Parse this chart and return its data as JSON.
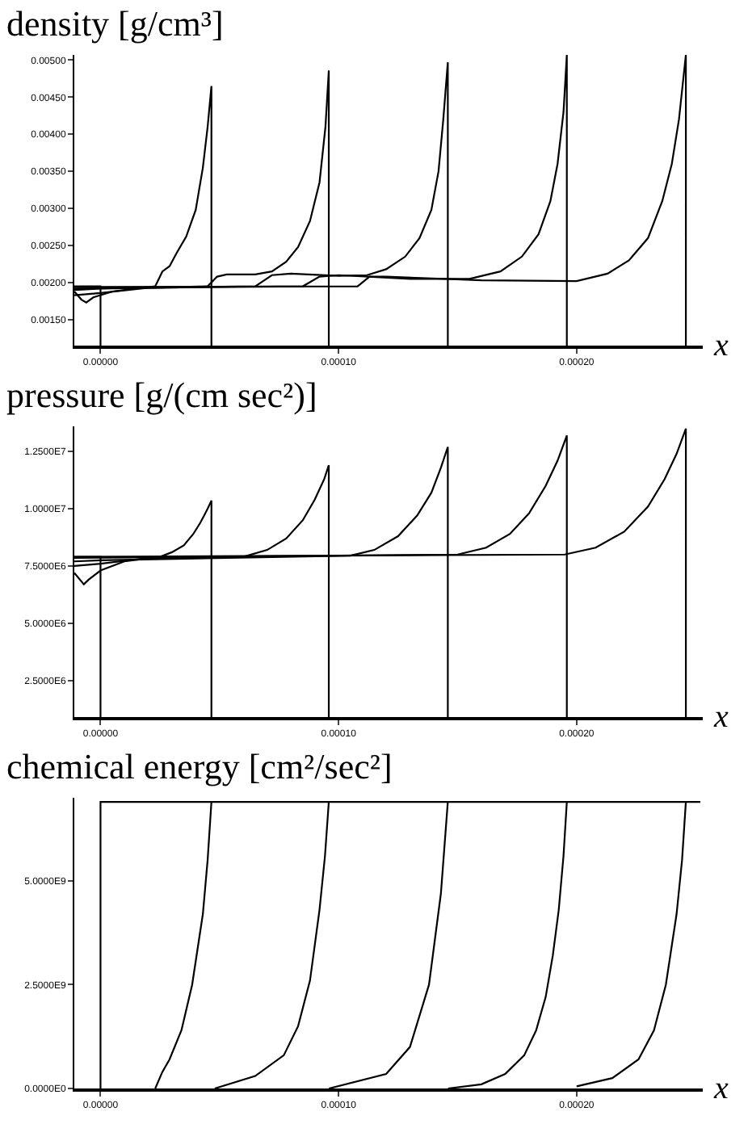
{
  "chart_data": [
    {
      "type": "line",
      "title": "density [g/cm³]",
      "xlabel": "x",
      "line_style": "solid",
      "xlim": [
        -1.1e-05,
        0.000253
      ],
      "xticks": [
        {
          "value": 0,
          "label": "0.00000"
        },
        {
          "value": 0.0001,
          "label": "0.00010"
        },
        {
          "value": 0.0002,
          "label": "0.00020"
        }
      ],
      "ylim": [
        0.00115,
        0.00507
      ],
      "yticks": [
        {
          "value": 0.0015,
          "label": "0.00150"
        },
        {
          "value": 0.002,
          "label": "0.00200"
        },
        {
          "value": 0.0025,
          "label": "0.00250"
        },
        {
          "value": 0.003,
          "label": "0.00300"
        },
        {
          "value": 0.0035,
          "label": "0.00350"
        },
        {
          "value": 0.004,
          "label": "0.00400"
        },
        {
          "value": 0.0045,
          "label": "0.00450"
        },
        {
          "value": 0.005,
          "label": "0.00500"
        }
      ],
      "series": [
        {
          "color": "#000000",
          "x": [
            -1.1e-05,
            0,
            0
          ],
          "values": [
            0.00195,
            0.00195,
            0.00115
          ]
        },
        {
          "color": "#000000",
          "x": [
            -1.1e-05,
            -8e-06,
            -6e-06,
            -3e-06,
            5e-06,
            1.5e-05,
            2.3e-05,
            2.6e-05,
            2.9e-05,
            3.2e-05,
            3.6e-05,
            4e-05,
            4.3e-05,
            4.5e-05,
            4.66e-05,
            4.66e-05
          ],
          "values": [
            0.00188,
            0.00177,
            0.00173,
            0.0018,
            0.00188,
            0.00192,
            0.00195,
            0.00215,
            0.00222,
            0.0024,
            0.00262,
            0.00298,
            0.00355,
            0.0041,
            0.00465,
            0.00115
          ]
        },
        {
          "color": "#000000",
          "x": [
            -1.1e-05,
            0,
            2e-05,
            4.5e-05,
            4.9e-05,
            5.3e-05,
            6.5e-05,
            7.2e-05,
            7.8e-05,
            8.3e-05,
            8.8e-05,
            9.2e-05,
            9.45e-05,
            9.59e-05,
            9.59e-05
          ],
          "values": [
            0.00183,
            0.00186,
            0.00193,
            0.00195,
            0.00208,
            0.00211,
            0.00211,
            0.00215,
            0.00228,
            0.00248,
            0.00283,
            0.00335,
            0.0041,
            0.00486,
            0.00115
          ]
        },
        {
          "color": "#000000",
          "x": [
            -1.1e-05,
            0,
            6.5e-05,
            7.2e-05,
            8e-05,
            0.0001,
            0.000112,
            0.00012,
            0.000128,
            0.000134,
            0.000139,
            0.000142,
            0.000144,
            0.0001459,
            0.0001459
          ],
          "values": [
            0.0019,
            0.00192,
            0.00195,
            0.0021,
            0.00212,
            0.00209,
            0.0021,
            0.00218,
            0.00235,
            0.0026,
            0.00298,
            0.0035,
            0.0042,
            0.00497,
            0.00115
          ]
        },
        {
          "color": "#000000",
          "x": [
            -1.1e-05,
            8.5e-05,
            9.2e-05,
            0.0001,
            0.00013,
            0.000155,
            0.000168,
            0.000177,
            0.000184,
            0.000189,
            0.000192,
            0.0001945,
            0.0001959,
            0.0001959
          ],
          "values": [
            0.00192,
            0.00195,
            0.00208,
            0.0021,
            0.00205,
            0.00205,
            0.00215,
            0.00235,
            0.00265,
            0.0031,
            0.0036,
            0.0043,
            0.00507,
            0.00115
          ]
        },
        {
          "color": "#000000",
          "x": [
            -1.1e-05,
            0.000108,
            0.000113,
            0.00012,
            0.00016,
            0.0002,
            0.000213,
            0.000222,
            0.00023,
            0.000236,
            0.00024,
            0.000243,
            0.0002459,
            0.0002459
          ],
          "values": [
            0.00194,
            0.00195,
            0.00208,
            0.00208,
            0.00203,
            0.00202,
            0.00212,
            0.0023,
            0.0026,
            0.0031,
            0.0036,
            0.0042,
            0.00507,
            0.00115
          ]
        }
      ]
    },
    {
      "type": "line",
      "title": "pressure [g/(cm sec²)]",
      "xlabel": "x",
      "line_style": "solid",
      "xlim": [
        -1.1e-05,
        0.000253
      ],
      "xticks": [
        {
          "value": 0,
          "label": "0.00000"
        },
        {
          "value": 0.0001,
          "label": "0.00010"
        },
        {
          "value": 0.0002,
          "label": "0.00020"
        }
      ],
      "ylim": [
        900000,
        13600000
      ],
      "yticks": [
        {
          "value": 2500000,
          "label": "2.5000E6"
        },
        {
          "value": 5000000,
          "label": "5.0000E6"
        },
        {
          "value": 7500000,
          "label": "7.5000E6"
        },
        {
          "value": 10000000,
          "label": "1.0000E7"
        },
        {
          "value": 12500000,
          "label": "1.2500E7"
        }
      ],
      "series": [
        {
          "color": "#000000",
          "x": [
            -1.1e-05,
            0,
            0
          ],
          "values": [
            7900000,
            7900000,
            900000
          ]
        },
        {
          "color": "#000000",
          "x": [
            -1.1e-05,
            -7e-06,
            -5e-06,
            0,
            1e-05,
            2.5e-05,
            3e-05,
            3.5e-05,
            3.9e-05,
            4.2e-05,
            4.5e-05,
            4.66e-05,
            4.66e-05
          ],
          "values": [
            7200000,
            6700000,
            6900000,
            7300000,
            7700000,
            7900000,
            8100000,
            8400000,
            8900000,
            9400000,
            10000000,
            10360000,
            900000
          ]
        },
        {
          "color": "#000000",
          "x": [
            -1.1e-05,
            0,
            2e-05,
            6e-05,
            7e-05,
            7.8e-05,
            8.5e-05,
            9e-05,
            9.4e-05,
            9.59e-05,
            9.59e-05
          ],
          "values": [
            7500000,
            7600000,
            7850000,
            7900000,
            8200000,
            8700000,
            9500000,
            10400000,
            11300000,
            11900000,
            900000
          ]
        },
        {
          "color": "#000000",
          "x": [
            -1.1e-05,
            0,
            0.000105,
            0.000115,
            0.000125,
            0.000133,
            0.000139,
            0.000143,
            0.0001459,
            0.0001459
          ],
          "values": [
            7700000,
            7750000,
            7950000,
            8200000,
            8800000,
            9700000,
            10700000,
            11800000,
            12700000,
            900000
          ]
        },
        {
          "color": "#000000",
          "x": [
            -1.1e-05,
            0.00015,
            0.000162,
            0.000172,
            0.00018,
            0.000187,
            0.000192,
            0.0001959,
            0.0001959
          ],
          "values": [
            7850000,
            8000000,
            8300000,
            8900000,
            9800000,
            11000000,
            12100000,
            13200000,
            900000
          ]
        },
        {
          "color": "#000000",
          "x": [
            -1.1e-05,
            0.000195,
            0.000208,
            0.00022,
            0.00023,
            0.000237,
            0.000242,
            0.0002459,
            0.0002459
          ],
          "values": [
            7900000,
            8000000,
            8300000,
            9000000,
            10100000,
            11300000,
            12400000,
            13500000,
            900000
          ]
        }
      ]
    },
    {
      "type": "line",
      "title": "chemical energy [cm²/sec²]",
      "xlabel": "x",
      "line_style": "solid",
      "xlim": [
        -1.1e-05,
        0.000253
      ],
      "xticks": [
        {
          "value": 0,
          "label": "0.00000"
        },
        {
          "value": 0.0001,
          "label": "0.00010"
        },
        {
          "value": 0.0002,
          "label": "0.00020"
        }
      ],
      "ylim": [
        0,
        7000000000
      ],
      "yticks": [
        {
          "value": 0,
          "label": "0.0000E0"
        },
        {
          "value": 2500000000,
          "label": "2.5000E9"
        },
        {
          "value": 5000000000,
          "label": "5.0000E9"
        }
      ],
      "series": [
        {
          "color": "#000000",
          "x": [
            0,
            0,
            0.000252
          ],
          "values": [
            0,
            6900000000,
            6900000000
          ]
        },
        {
          "color": "#000000",
          "x": [
            2.3e-05,
            2.6e-05,
            2.9e-05,
            3.4e-05,
            3.85e-05,
            4.3e-05,
            4.5e-05,
            4.66e-05
          ],
          "values": [
            0,
            400000000,
            700000000,
            1400000000,
            2500000000,
            4200000000,
            5500000000,
            6900000000
          ]
        },
        {
          "color": "#000000",
          "x": [
            4.8e-05,
            6.5e-05,
            7.7e-05,
            8.3e-05,
            8.8e-05,
            9.2e-05,
            9.43e-05,
            9.59e-05
          ],
          "values": [
            0,
            300000000,
            800000000,
            1500000000,
            2600000000,
            4300000000,
            5600000000,
            6900000000
          ]
        },
        {
          "color": "#000000",
          "x": [
            9.6e-05,
            0.00012,
            0.00013,
            0.000138,
            0.000143,
            0.0001459
          ],
          "values": [
            0,
            350000000,
            1000000000,
            2500000000,
            4700000000,
            6900000000
          ]
        },
        {
          "color": "#000000",
          "x": [
            0.000146,
            0.00016,
            0.00017,
            0.000178,
            0.000183,
            0.000187,
            0.00019,
            0.0001925,
            0.0001945,
            0.0001959
          ],
          "values": [
            0,
            100000000,
            350000000,
            800000000,
            1400000000,
            2200000000,
            3200000000,
            4300000000,
            5600000000,
            6900000000
          ]
        },
        {
          "color": "#000000",
          "x": [
            0.0002,
            0.000215,
            0.000226,
            0.0002325,
            0.0002375,
            0.000242,
            0.0002443,
            0.0002459
          ],
          "values": [
            50000000,
            250000000,
            700000000,
            1400000000,
            2500000000,
            4200000000,
            5500000000,
            6900000000
          ]
        }
      ]
    }
  ]
}
